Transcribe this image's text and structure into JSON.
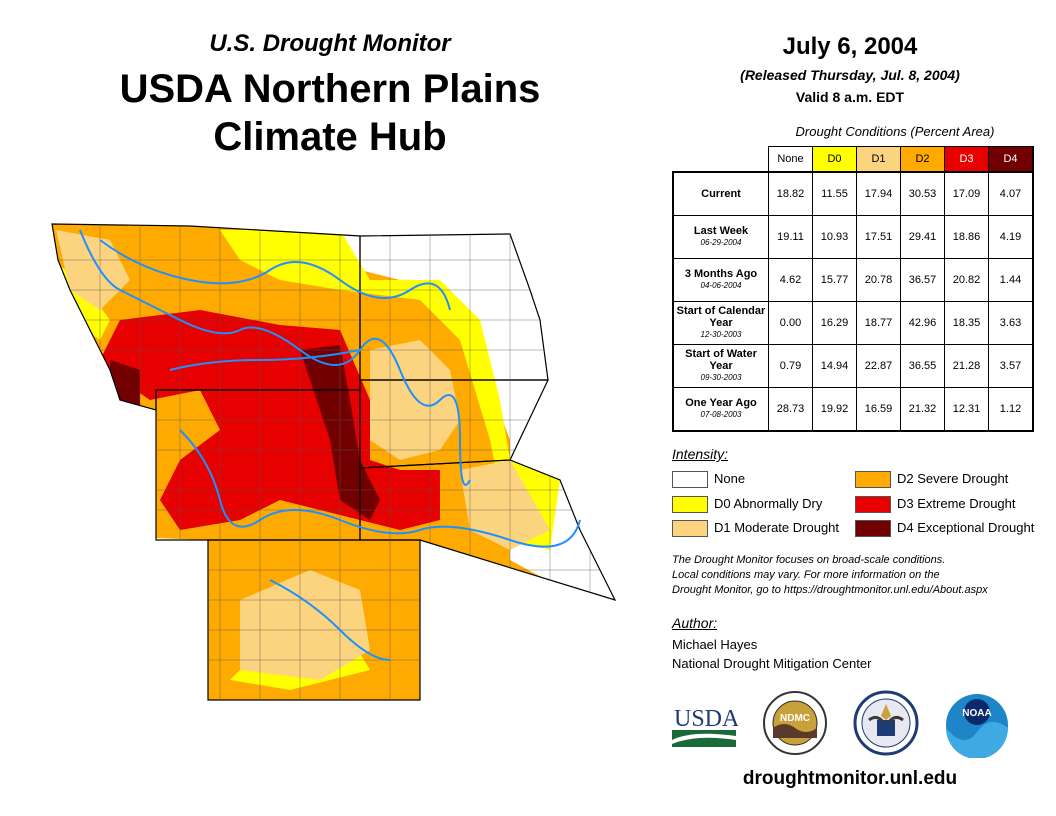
{
  "header": {
    "subtitle": "U.S. Drought Monitor",
    "title_line1": "USDA Northern Plains",
    "title_line2": "Climate Hub",
    "date": "July 6, 2004",
    "released": "(Released Thursday, Jul. 8, 2004)",
    "valid": "Valid 8 a.m. EDT"
  },
  "table": {
    "caption": "Drought Conditions (Percent Area)",
    "columns": [
      "None",
      "D0",
      "D1",
      "D2",
      "D3",
      "D4"
    ],
    "rows": [
      {
        "label": "Current",
        "date": "",
        "values": [
          "18.82",
          "11.55",
          "17.94",
          "30.53",
          "17.09",
          "4.07"
        ]
      },
      {
        "label": "Last Week",
        "date": "06-29-2004",
        "values": [
          "19.11",
          "10.93",
          "17.51",
          "29.41",
          "18.86",
          "4.19"
        ]
      },
      {
        "label": "3 Months Ago",
        "date": "04-06-2004",
        "values": [
          "4.62",
          "15.77",
          "20.78",
          "36.57",
          "20.82",
          "1.44"
        ]
      },
      {
        "label": "Start of Calendar Year",
        "date": "12-30-2003",
        "values": [
          "0.00",
          "16.29",
          "18.77",
          "42.96",
          "18.35",
          "3.63"
        ]
      },
      {
        "label": "Start of Water Year",
        "date": "09-30-2003",
        "values": [
          "0.79",
          "14.94",
          "22.87",
          "36.55",
          "21.28",
          "3.57"
        ]
      },
      {
        "label": "One Year Ago",
        "date": "07-08-2003",
        "values": [
          "28.73",
          "19.92",
          "16.59",
          "21.32",
          "12.31",
          "1.12"
        ]
      }
    ]
  },
  "legend": {
    "title": "Intensity:",
    "items": [
      {
        "label": "None",
        "color": "#ffffff"
      },
      {
        "label": "D0 Abnormally Dry",
        "color": "#ffff00"
      },
      {
        "label": "D1 Moderate Drought",
        "color": "#fcd37f"
      },
      {
        "label": "D2 Severe Drought",
        "color": "#ffaa00"
      },
      {
        "label": "D3 Extreme Drought",
        "color": "#e60000"
      },
      {
        "label": "D4 Exceptional Drought",
        "color": "#730000"
      }
    ]
  },
  "note": {
    "line1": "The Drought Monitor focuses on broad-scale conditions.",
    "line2": "Local conditions may vary. For more information on the",
    "line3": "Drought Monitor, go to https://droughtmonitor.unl.edu/About.aspx"
  },
  "author": {
    "title": "Author:",
    "name": "Michael Hayes",
    "org": "National Drought Mitigation Center"
  },
  "logos": {
    "usda": "USDA",
    "ndmc": "NDMC",
    "noaa": "NOAA"
  },
  "map": {
    "states": [
      "Montana",
      "Wyoming",
      "Colorado",
      "North Dakota",
      "South Dakota",
      "Nebraska"
    ]
  },
  "website": "droughtmonitor.unl.edu"
}
